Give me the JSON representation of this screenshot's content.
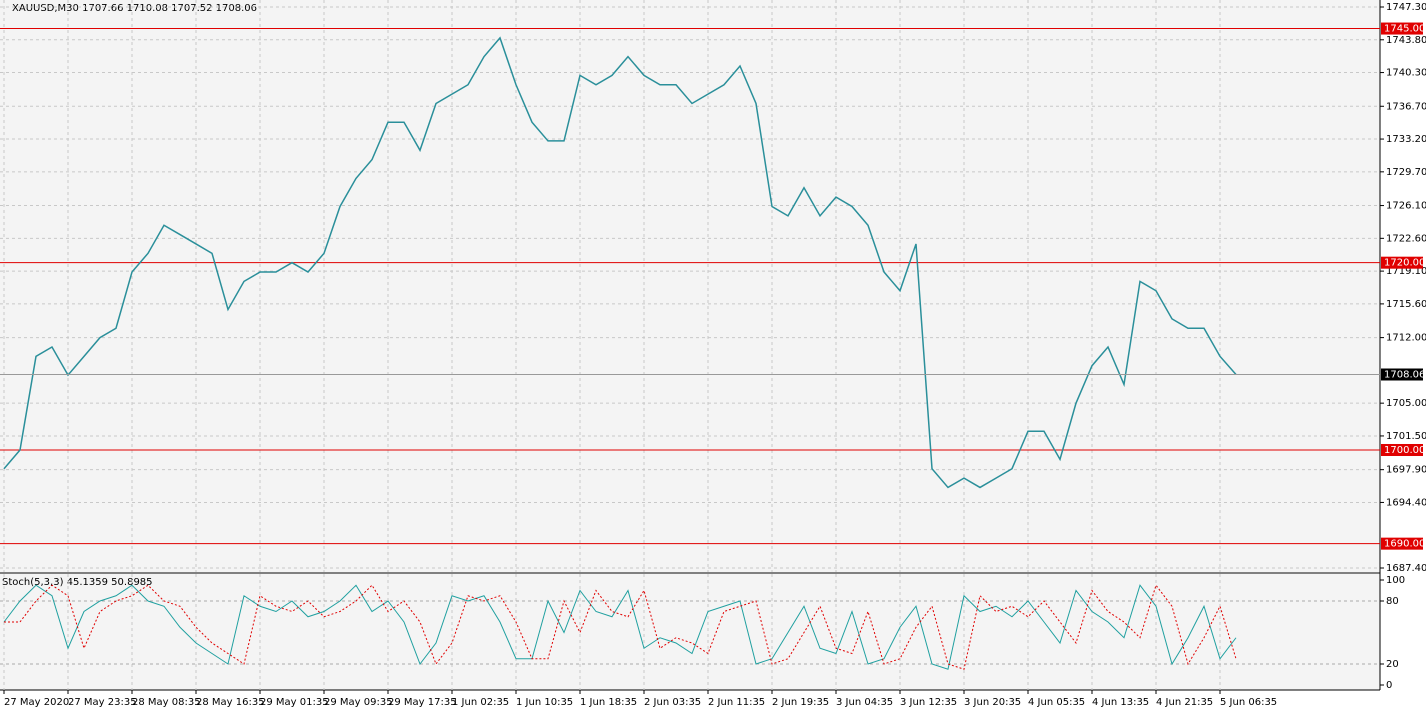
{
  "chart_data": {
    "type": "line",
    "title": "XAUUSD,M30  1707.66 1710.08 1707.52 1708.06",
    "categories": [
      "27 May 2020",
      null,
      null,
      null,
      "27 May 23:35",
      null,
      null,
      null,
      "28 May 08:35",
      null,
      null,
      null,
      "28 May 16:35",
      null,
      null,
      null,
      "29 May 01:35",
      null,
      null,
      null,
      "29 May 09:35",
      null,
      null,
      null,
      "29 May 17:35",
      null,
      null,
      null,
      "1 Jun 02:35",
      null,
      null,
      null,
      "1 Jun 10:35",
      null,
      null,
      null,
      "1 Jun 18:35",
      null,
      null,
      null,
      "2 Jun 03:35",
      null,
      null,
      null,
      "2 Jun 11:35",
      null,
      null,
      null,
      "2 Jun 19:35",
      null,
      null,
      null,
      "3 Jun 04:35",
      null,
      null,
      null,
      "3 Jun 12:35",
      null,
      null,
      null,
      "3 Jun 20:35",
      null,
      null,
      null,
      "4 Jun 05:35",
      null,
      null,
      null,
      "4 Jun 13:35",
      null,
      null,
      null,
      "4 Jun 21:35",
      null,
      null,
      null,
      "5 Jun 06:35",
      null
    ],
    "values": [
      1698,
      1700,
      1710,
      1711,
      1708,
      1710,
      1712,
      1713,
      1719,
      1721,
      1724,
      1723,
      1722,
      1721,
      1715,
      1718,
      1719,
      1719,
      1720,
      1719,
      1721,
      1726,
      1729,
      1731,
      1735,
      1735,
      1732,
      1737,
      1738,
      1739,
      1742,
      1744,
      1739,
      1735,
      1733,
      1733,
      1740,
      1739,
      1740,
      1742,
      1740,
      1739,
      1739,
      1737,
      1738,
      1739,
      1741,
      1737,
      1726,
      1725,
      1728,
      1725,
      1727,
      1726,
      1724,
      1719,
      1717,
      1722,
      1698,
      1696,
      1697,
      1696,
      1697,
      1698,
      1702,
      1702,
      1699,
      1705,
      1709,
      1711,
      1707,
      1718,
      1717,
      1714,
      1713,
      1713,
      1710,
      1708.06
    ],
    "color": "#2a8f9a",
    "ylim": [
      1687.4,
      1747.3
    ],
    "yticks": [
      {
        "value": 1747.3,
        "label": "1747.30"
      },
      {
        "value": 1743.8,
        "label": "1743.80"
      },
      {
        "value": 1740.3,
        "label": "1740.30"
      },
      {
        "value": 1736.7,
        "label": "1736.70"
      },
      {
        "value": 1733.2,
        "label": "1733.20"
      },
      {
        "value": 1729.7,
        "label": "1729.70"
      },
      {
        "value": 1726.1,
        "label": "1726.10"
      },
      {
        "value": 1722.6,
        "label": "1722.60"
      },
      {
        "value": 1719.1,
        "label": "1719.10"
      },
      {
        "value": 1715.6,
        "label": "1715.60"
      },
      {
        "value": 1712,
        "label": "1712.00"
      },
      {
        "value": 1705,
        "label": "1705.00"
      },
      {
        "value": 1701.5,
        "label": "1701.50"
      },
      {
        "value": 1697.9,
        "label": "1697.90"
      },
      {
        "value": 1694.4,
        "label": "1694.40"
      },
      {
        "value": 1687.4,
        "label": "1687.40"
      }
    ],
    "levels": [
      {
        "value": 1745,
        "label": "1745.00"
      },
      {
        "value": 1720,
        "label": "1720.00"
      },
      {
        "value": 1700,
        "label": "1700.00"
      },
      {
        "value": 1690,
        "label": "1690.00"
      }
    ],
    "level_color": "#e00000",
    "current_price": 1708.06,
    "grid": true,
    "indicator": {
      "title": "Stoch(5,3,3) 45.1359 50.8985",
      "ylim": [
        0,
        100
      ],
      "yticks": [
        0,
        20,
        80,
        100
      ],
      "levels": [
        20,
        80
      ],
      "series": [
        {
          "color": "#20a0a0",
          "values": [
            60,
            80,
            95,
            85,
            35,
            70,
            80,
            85,
            95,
            80,
            75,
            55,
            40,
            30,
            20,
            85,
            75,
            70,
            80,
            65,
            70,
            80,
            95,
            70,
            80,
            60,
            20,
            40,
            85,
            80,
            85,
            60,
            25,
            25,
            80,
            50,
            90,
            70,
            65,
            90,
            35,
            45,
            40,
            30,
            70,
            75,
            80,
            20,
            25,
            50,
            75,
            35,
            30,
            70,
            20,
            25,
            55,
            75,
            20,
            15,
            85,
            70,
            75,
            65,
            80,
            60,
            40,
            90,
            70,
            60,
            45,
            95,
            75,
            20,
            45,
            75,
            25,
            45
          ]
        },
        {
          "color": "#e00000",
          "values": [
            60,
            60,
            80,
            95,
            85,
            35,
            70,
            80,
            85,
            95,
            80,
            75,
            55,
            40,
            30,
            20,
            85,
            75,
            70,
            80,
            65,
            70,
            80,
            95,
            70,
            80,
            60,
            20,
            40,
            85,
            80,
            85,
            60,
            25,
            25,
            80,
            50,
            90,
            70,
            65,
            90,
            35,
            45,
            40,
            30,
            70,
            75,
            80,
            20,
            25,
            50,
            75,
            35,
            30,
            70,
            20,
            25,
            55,
            75,
            20,
            15,
            85,
            70,
            75,
            65,
            80,
            60,
            40,
            90,
            70,
            60,
            45,
            95,
            75,
            20,
            45,
            75,
            25
          ]
        }
      ]
    }
  }
}
